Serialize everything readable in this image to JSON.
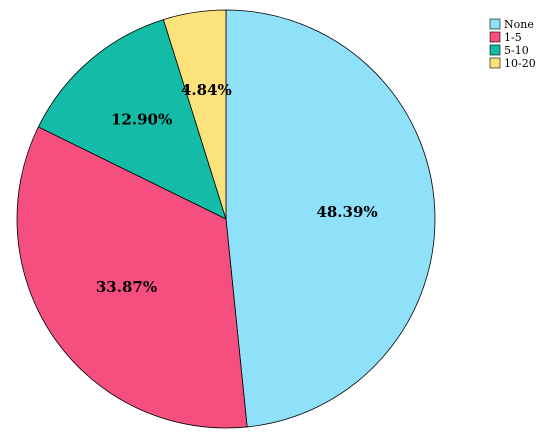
{
  "chart_data": {
    "type": "pie",
    "categories": [
      "None",
      "1-5",
      "5-10",
      "10-20"
    ],
    "values": [
      48.39,
      33.87,
      12.9,
      4.84
    ],
    "value_labels": [
      "48.39%",
      "33.87%",
      "12.90%",
      "4.84%"
    ],
    "colors": [
      "#8FE1FA",
      "#F44F7F",
      "#14BBA6",
      "#FCE27A"
    ],
    "start_angle_deg": 0,
    "direction": "clockwise",
    "legend": {
      "position": "top-right",
      "entries": [
        "None",
        "1-5",
        "5-10",
        "10-20"
      ]
    },
    "title": "",
    "xlabel": "",
    "ylabel": ""
  }
}
